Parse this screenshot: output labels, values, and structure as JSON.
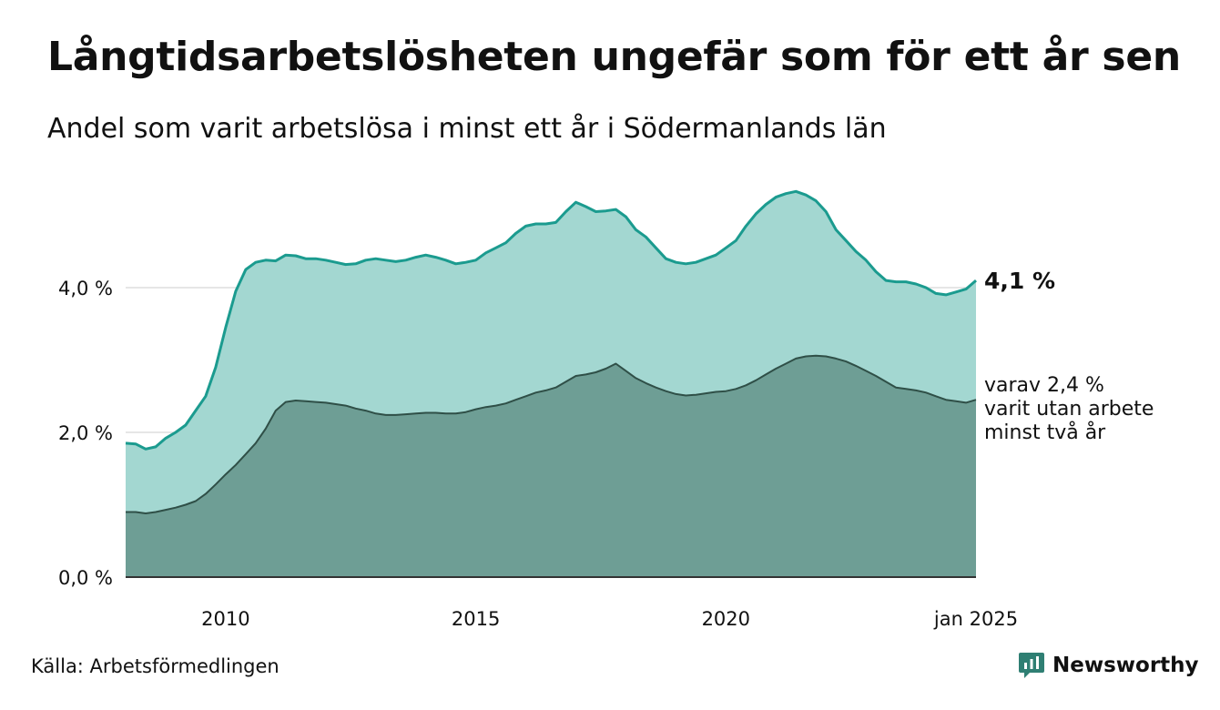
{
  "title": "Långtidsarbetslösheten ungefär som för ett år sen",
  "subtitle": "Andel som varit arbetslösa i minst ett år i Södermanlands län",
  "source": "Källa: Arbetsförmedlingen",
  "logo": {
    "text": "Newsworthy",
    "icon": "newsworthy-logo-icon"
  },
  "colors": {
    "long_term_fill": "#a3d7d1",
    "long_term_line": "#1b9b8f",
    "very_long_term_fill": "#6e9e95",
    "very_long_term_line": "#2f4f47",
    "grid": "#dddddd",
    "logo": "#2f7f73"
  },
  "annotations": {
    "last_value_label": "4,1 %",
    "sub_value_lines": [
      "varav 2,4 %",
      "varit utan arbete",
      "minst två år"
    ]
  },
  "chart_data": {
    "type": "area",
    "x_unit": "year",
    "xlim": [
      2008.0,
      2025.0
    ],
    "ylim": [
      0,
      6.0
    ],
    "grid": "horizontal",
    "y_ticks": [
      {
        "value": 0,
        "label": "0,0 %"
      },
      {
        "value": 2,
        "label": "2,0 %"
      },
      {
        "value": 4,
        "label": "4,0 %"
      }
    ],
    "x_ticks": [
      {
        "value": 2010,
        "label": "2010"
      },
      {
        "value": 2015,
        "label": "2015"
      },
      {
        "value": 2020,
        "label": "2020"
      },
      {
        "value": 2025,
        "label": "jan 2025"
      }
    ],
    "x": [
      2008.0,
      2008.2,
      2008.4,
      2008.6,
      2008.8,
      2009.0,
      2009.2,
      2009.4,
      2009.6,
      2009.8,
      2010.0,
      2010.2,
      2010.4,
      2010.6,
      2010.8,
      2011.0,
      2011.2,
      2011.4,
      2011.6,
      2011.8,
      2012.0,
      2012.2,
      2012.4,
      2012.6,
      2012.8,
      2013.0,
      2013.2,
      2013.4,
      2013.6,
      2013.8,
      2014.0,
      2014.2,
      2014.4,
      2014.6,
      2014.8,
      2015.0,
      2015.2,
      2015.4,
      2015.6,
      2015.8,
      2016.0,
      2016.2,
      2016.4,
      2016.6,
      2016.8,
      2017.0,
      2017.2,
      2017.4,
      2017.6,
      2017.8,
      2018.0,
      2018.2,
      2018.4,
      2018.6,
      2018.8,
      2019.0,
      2019.2,
      2019.4,
      2019.6,
      2019.8,
      2020.0,
      2020.2,
      2020.4,
      2020.6,
      2020.8,
      2021.0,
      2021.2,
      2021.4,
      2021.6,
      2021.8,
      2022.0,
      2022.2,
      2022.4,
      2022.6,
      2022.8,
      2023.0,
      2023.2,
      2023.4,
      2023.6,
      2023.8,
      2024.0,
      2024.2,
      2024.4,
      2024.6,
      2024.8,
      2025.0
    ],
    "series": [
      {
        "values": [
          1.85,
          1.84,
          1.77,
          1.8,
          1.92,
          2.0,
          2.1,
          2.3,
          2.5,
          2.9,
          3.45,
          3.95,
          4.25,
          4.35,
          4.38,
          4.37,
          4.45,
          4.44,
          4.4,
          4.4,
          4.38,
          4.35,
          4.32,
          4.33,
          4.38,
          4.4,
          4.38,
          4.36,
          4.38,
          4.42,
          4.45,
          4.42,
          4.38,
          4.33,
          4.35,
          4.38,
          4.48,
          4.55,
          4.62,
          4.75,
          4.85,
          4.88,
          4.88,
          4.9,
          5.05,
          5.18,
          5.12,
          5.05,
          5.06,
          5.08,
          4.98,
          4.8,
          4.7,
          4.55,
          4.4,
          4.35,
          4.33,
          4.35,
          4.4,
          4.45,
          4.55,
          4.65,
          4.85,
          5.02,
          5.15,
          5.25,
          5.3,
          5.33,
          5.28,
          5.2,
          5.05,
          4.8,
          4.65,
          4.5,
          4.38,
          4.22,
          4.1,
          4.08,
          4.08,
          4.05,
          4.0,
          3.92,
          3.9,
          3.94,
          3.98,
          4.1
        ]
      },
      {
        "values": [
          0.9,
          0.9,
          0.88,
          0.9,
          0.93,
          0.96,
          1.0,
          1.05,
          1.15,
          1.28,
          1.42,
          1.55,
          1.7,
          1.85,
          2.05,
          2.3,
          2.42,
          2.44,
          2.43,
          2.42,
          2.41,
          2.39,
          2.37,
          2.33,
          2.3,
          2.26,
          2.24,
          2.24,
          2.25,
          2.26,
          2.27,
          2.27,
          2.26,
          2.26,
          2.28,
          2.32,
          2.35,
          2.37,
          2.4,
          2.45,
          2.5,
          2.55,
          2.58,
          2.62,
          2.7,
          2.78,
          2.8,
          2.83,
          2.88,
          2.95,
          2.85,
          2.75,
          2.68,
          2.62,
          2.57,
          2.53,
          2.51,
          2.52,
          2.54,
          2.56,
          2.57,
          2.6,
          2.65,
          2.72,
          2.8,
          2.88,
          2.95,
          3.02,
          3.05,
          3.06,
          3.05,
          3.02,
          2.98,
          2.92,
          2.85,
          2.78,
          2.7,
          2.62,
          2.6,
          2.58,
          2.55,
          2.5,
          2.45,
          2.43,
          2.41,
          2.45
        ]
      }
    ]
  }
}
